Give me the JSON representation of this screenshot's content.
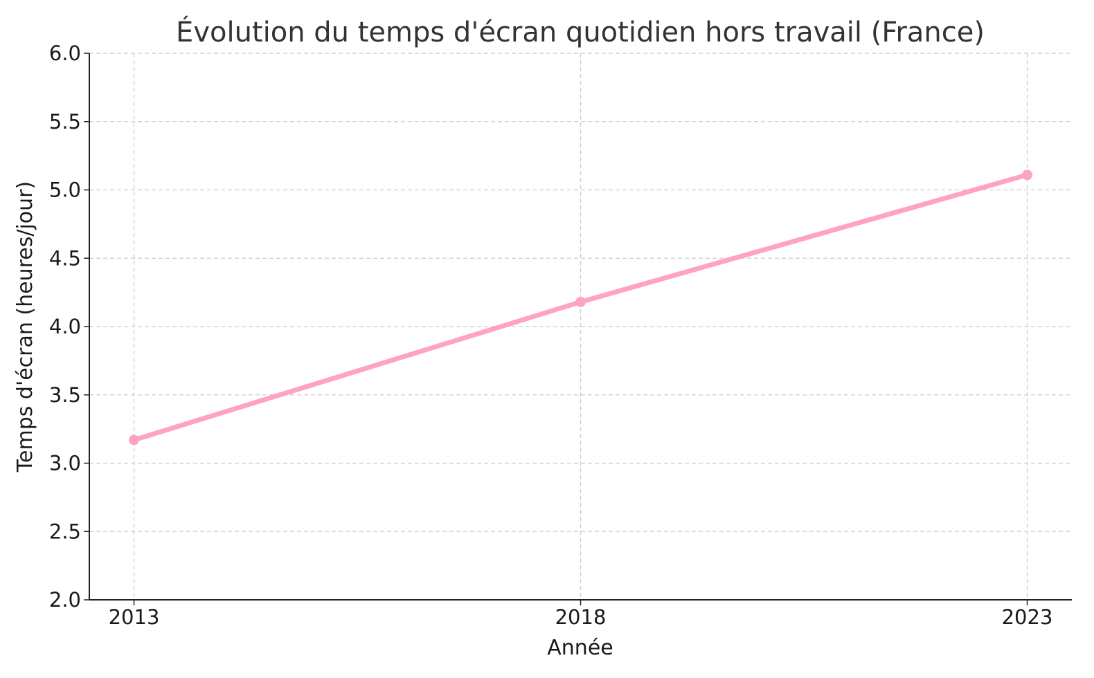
{
  "chart_data": {
    "type": "line",
    "title": "Évolution du temps d'écran quotidien hors travail (France)",
    "xlabel": "Année",
    "ylabel": "Temps d'écran (heures/jour)",
    "x": [
      2013,
      2018,
      2023
    ],
    "x_tick_labels": [
      "2013",
      "2018",
      "2023"
    ],
    "y_tick_labels": [
      "2.0",
      "2.5",
      "3.0",
      "3.5",
      "4.0",
      "4.5",
      "5.0",
      "5.5",
      "6.0"
    ],
    "series": [
      {
        "values": [
          3.17,
          4.18,
          5.11
        ],
        "color": "#ffa3c4",
        "marker": "circle"
      }
    ],
    "ylim": [
      2.0,
      6.0
    ],
    "xlim": [
      2012.5,
      2023.5
    ],
    "grid": true,
    "legend": "none"
  }
}
